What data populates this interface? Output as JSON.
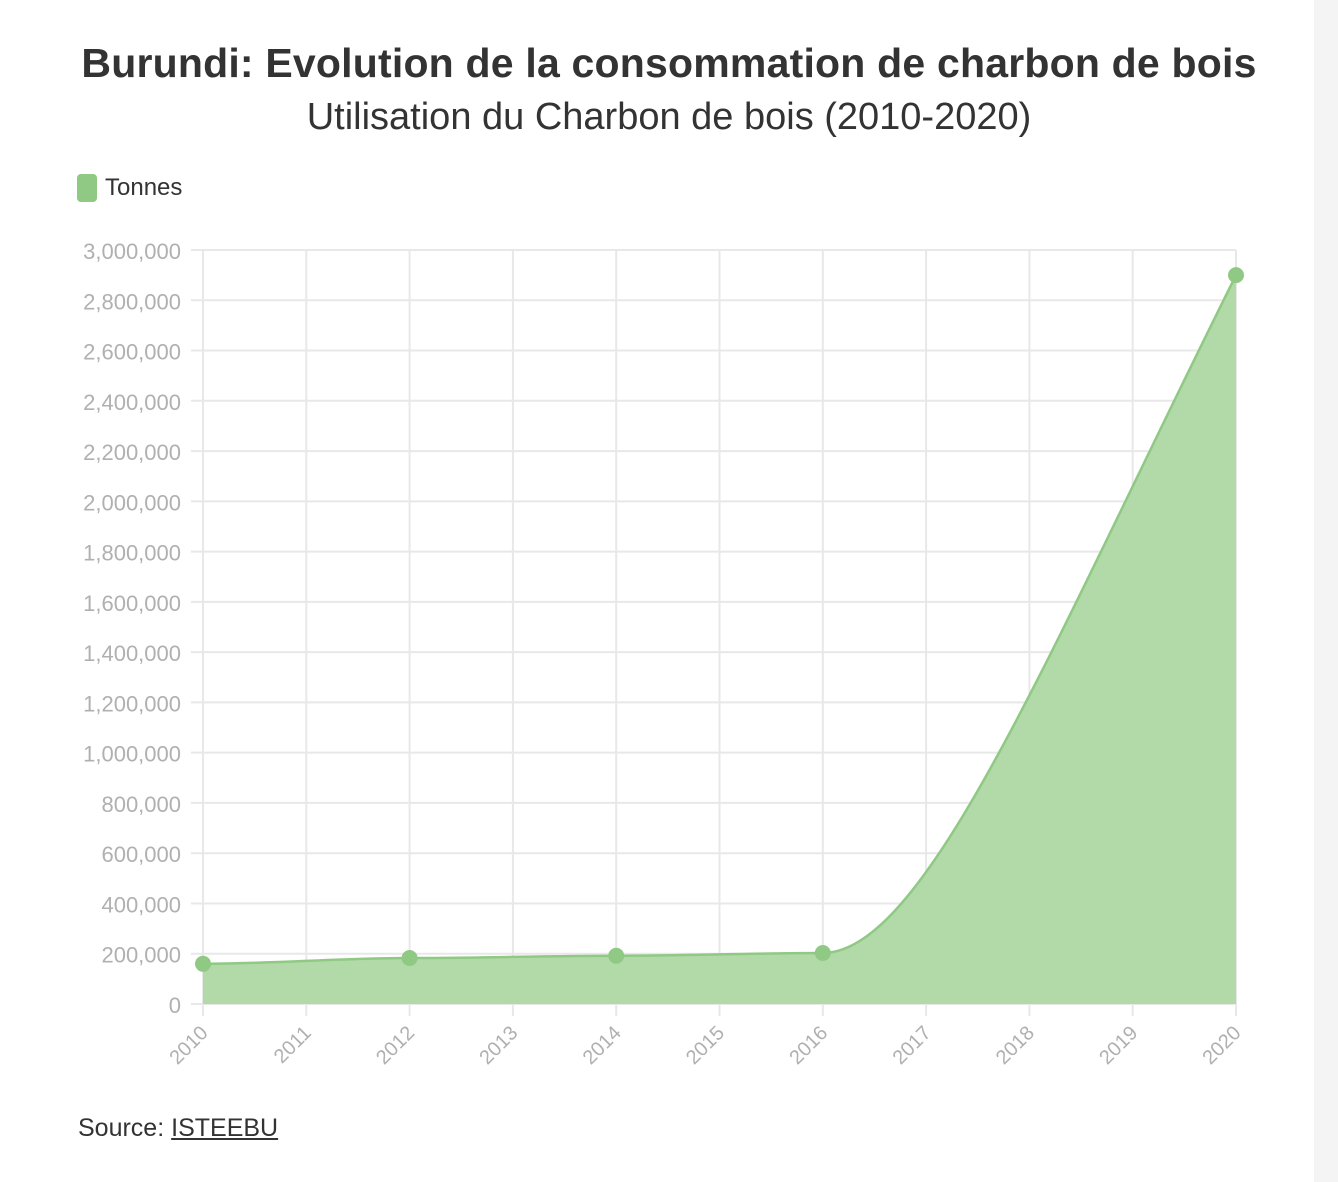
{
  "title": "Burundi: Evolution de la consommation de charbon de bois",
  "subtitle": "Utilisation du Charbon de bois (2010-2020)",
  "source": {
    "label": "Source:",
    "link_text": "ISTEEBU"
  },
  "colors": {
    "series": "#8fc984",
    "area": "#b2d9a8",
    "grid": "#e8e8e8",
    "tick_text": "#b0b0b0",
    "text": "#333333"
  },
  "chart_data": {
    "type": "area",
    "x": [
      "2010",
      "2011",
      "2012",
      "2013",
      "2014",
      "2015",
      "2016",
      "2017",
      "2018",
      "2019",
      "2020"
    ],
    "ylim": [
      0,
      3000000
    ],
    "yticks": [
      "0",
      "200,000",
      "400,000",
      "600,000",
      "800,000",
      "1,000,000",
      "1,200,000",
      "1,400,000",
      "1,600,000",
      "1,800,000",
      "2,000,000",
      "2,200,000",
      "2,400,000",
      "2,600,000",
      "2,800,000",
      "3,000,000"
    ],
    "ytick_values": [
      0,
      200000,
      400000,
      600000,
      800000,
      1000000,
      1200000,
      1400000,
      1600000,
      1800000,
      2000000,
      2200000,
      2400000,
      2600000,
      2800000,
      3000000
    ],
    "series": [
      {
        "name": "Tonnes",
        "points": [
          {
            "x": "2010",
            "y": 160000
          },
          {
            "x": "2012",
            "y": 183000
          },
          {
            "x": "2014",
            "y": 192000
          },
          {
            "x": "2016",
            "y": 203000
          },
          {
            "x": "2020",
            "y": 2900000
          }
        ]
      }
    ],
    "grid": true,
    "legend_position": "top-left"
  }
}
